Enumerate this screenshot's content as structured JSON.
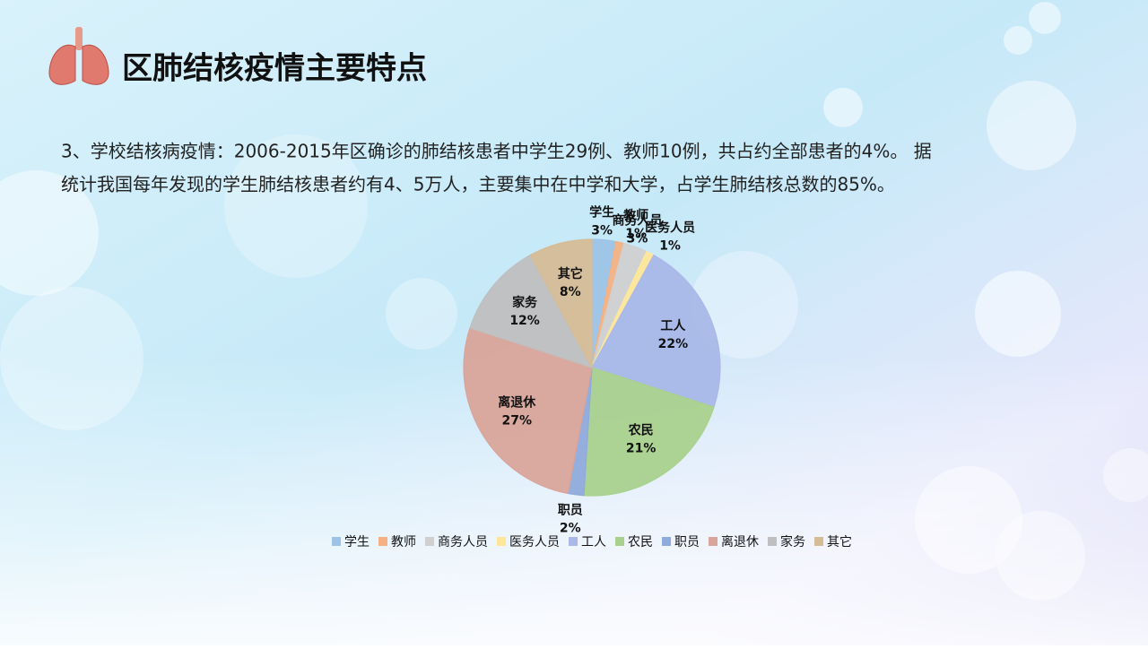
{
  "header": {
    "title": "区肺结核疫情主要特点"
  },
  "body_lines": [
    "3、学校结核病疫情：2006-2015年区确诊的肺结核患者中学生29例、教师10例，共占约全部患者的4%。 据",
    "统计我国每年发现的学生肺结核患者约有4、5万人，主要集中在中学和大学，占学生肺结核总数的85%。"
  ],
  "chart_data": {
    "type": "pie",
    "categories": [
      "学生",
      "教师",
      "商务人员",
      "医务人员",
      "工人",
      "农民",
      "职员",
      "离退休",
      "家务",
      "其它"
    ],
    "values": [
      3,
      1,
      3,
      1,
      22,
      21,
      2,
      27,
      12,
      8
    ],
    "value_labels": [
      "3%",
      "1%",
      "3%",
      "1%",
      "22%",
      "21%",
      "2%",
      "27%",
      "12%",
      "8%"
    ],
    "colors": [
      "#9dc3e6",
      "#f4b183",
      "#d0d0d0",
      "#ffe699",
      "#a9b8e8",
      "#a9d18e",
      "#8faadc",
      "#d9a49a",
      "#bfbfbf",
      "#d6bc96"
    ],
    "legend": "bottom"
  }
}
